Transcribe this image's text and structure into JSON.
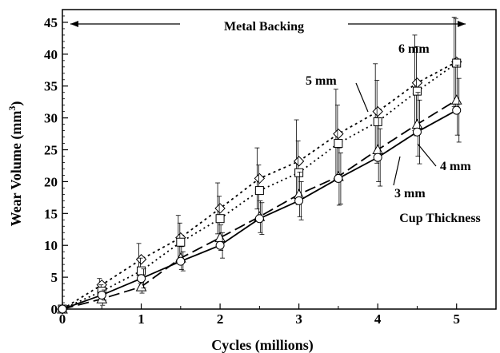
{
  "chart_data": {
    "type": "line",
    "xlabel": "Cycles (millions)",
    "ylabel_main": "Wear Volume (mm",
    "ylabel_sup": "3",
    "ylabel_end": ")",
    "xlim": [
      0,
      5.5
    ],
    "ylim": [
      0,
      47
    ],
    "xticks": [
      0,
      1,
      2,
      3,
      4,
      5
    ],
    "yticks": [
      0,
      5,
      10,
      15,
      20,
      25,
      30,
      35,
      40,
      45
    ],
    "grid": false,
    "annotations": {
      "metal_backing": "Metal Backing",
      "cup_thickness": "Cup Thickness",
      "label_6mm": "6 mm",
      "label_5mm": "5 mm",
      "label_4mm": "4 mm",
      "label_3mm": "3 mm"
    },
    "series": [
      {
        "name": "6 mm",
        "marker": "diamond",
        "dash": "3,4",
        "x": [
          0,
          0.5,
          1,
          1.5,
          2,
          2.5,
          3,
          3.5,
          4,
          4.5,
          5
        ],
        "y": [
          0,
          3.8,
          7.8,
          11.2,
          15.8,
          20.5,
          23.2,
          27.5,
          31.0,
          35.5,
          38.8
        ],
        "err": [
          0,
          1.0,
          2.5,
          3.5,
          4.0,
          4.8,
          6.5,
          7.0,
          7.5,
          7.5,
          7.0
        ]
      },
      {
        "name": "5 mm",
        "marker": "square",
        "dash": "2,4",
        "x": [
          0,
          0.5,
          1,
          1.5,
          2,
          2.5,
          3,
          3.5,
          4,
          4.5,
          5
        ],
        "y": [
          0,
          2.8,
          6.0,
          10.5,
          14.2,
          18.6,
          21.4,
          26.0,
          29.4,
          34.2,
          38.6
        ],
        "err": [
          0,
          1.0,
          2.0,
          3.0,
          3.5,
          4.0,
          5.0,
          6.0,
          6.5,
          7.0,
          7.0
        ]
      },
      {
        "name": "4 mm",
        "marker": "triangle",
        "dash": "14,6",
        "x": [
          0,
          0.5,
          1,
          1.5,
          2,
          2.5,
          3,
          3.5,
          4,
          4.5,
          5
        ],
        "y": [
          0,
          1.6,
          3.5,
          8.0,
          11.2,
          14.5,
          18.0,
          20.8,
          25.0,
          29.0,
          32.8
        ],
        "err": [
          0,
          1.0,
          1.0,
          1.8,
          2.0,
          2.5,
          3.5,
          4.5,
          5.0,
          5.0,
          5.5
        ]
      },
      {
        "name": "3 mm",
        "marker": "circle",
        "dash": "",
        "x": [
          0,
          0.5,
          1,
          1.5,
          2,
          2.5,
          3,
          3.5,
          4,
          4.5,
          5
        ],
        "y": [
          0,
          2.2,
          4.8,
          7.5,
          10.0,
          14.2,
          17.0,
          20.5,
          23.8,
          27.8,
          31.2
        ],
        "err": [
          0,
          0.8,
          1.5,
          1.5,
          2.0,
          2.5,
          3.0,
          4.0,
          4.5,
          5.0,
          5.0
        ]
      }
    ]
  }
}
